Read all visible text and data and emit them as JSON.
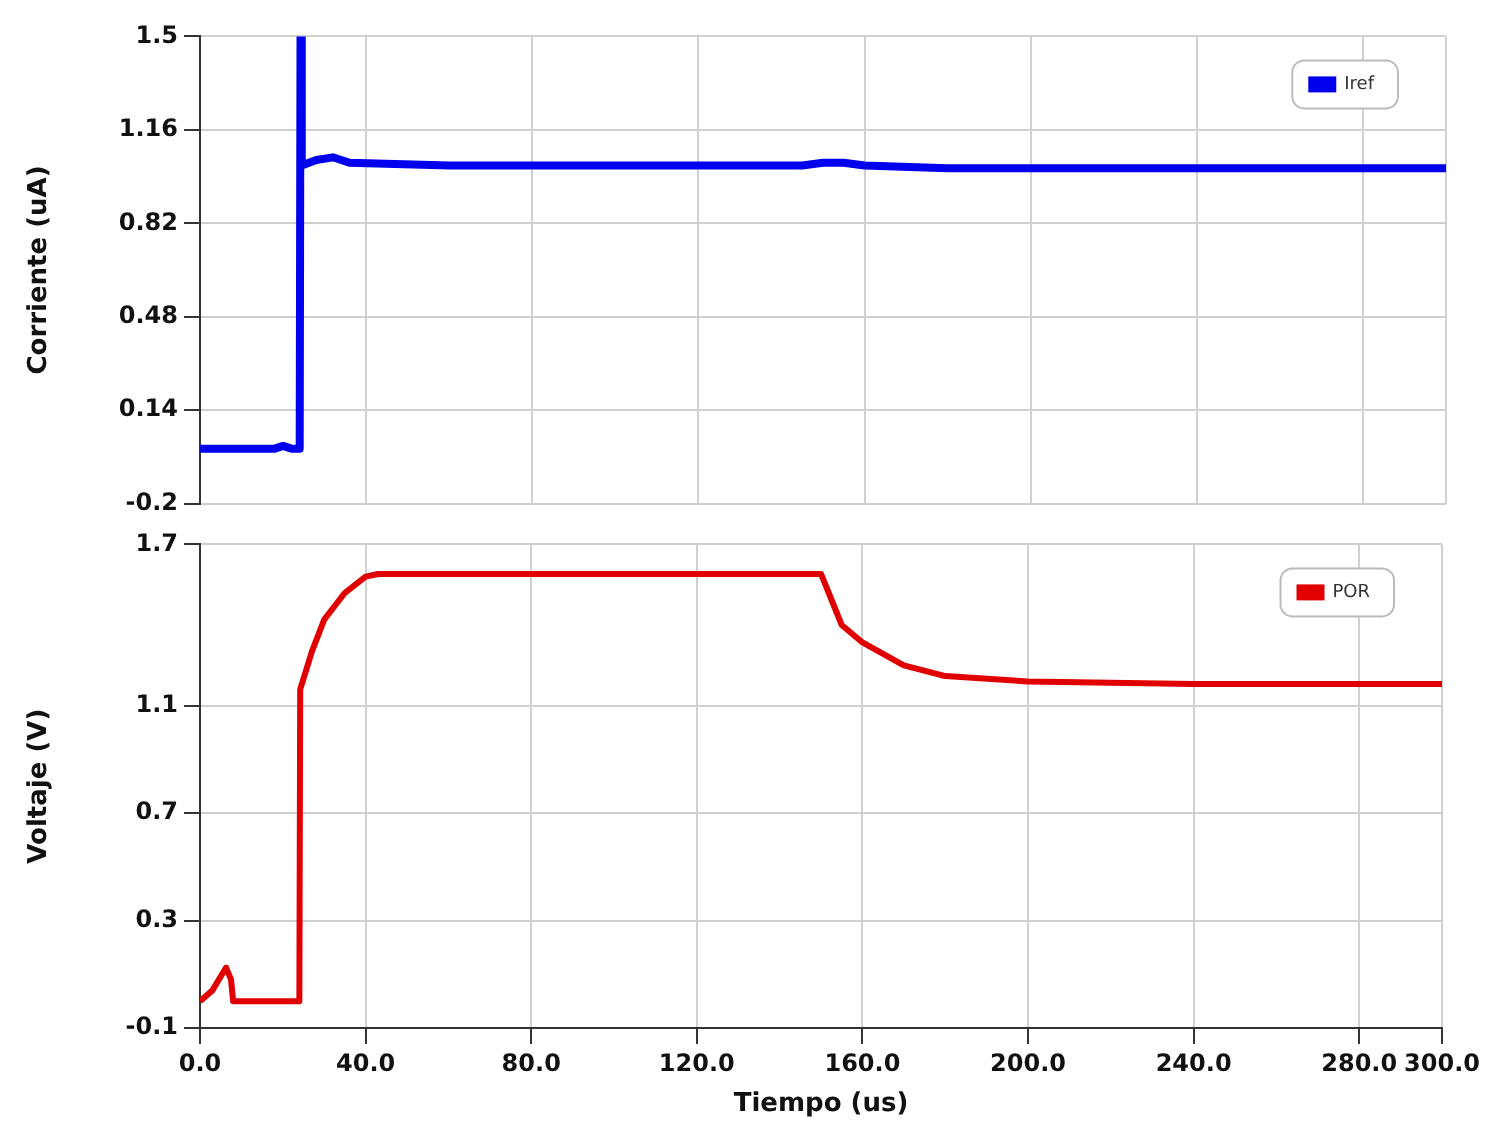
{
  "chart_data": [
    {
      "type": "line",
      "ylabel": "Corriente (uA)",
      "xlim": [
        0,
        300
      ],
      "xticks": [
        {
          "value": 0,
          "label": null
        },
        {
          "value": 40,
          "label": null
        },
        {
          "value": 80,
          "label": null
        },
        {
          "value": 120,
          "label": null
        },
        {
          "value": 160,
          "label": null
        },
        {
          "value": 200,
          "label": null
        },
        {
          "value": 240,
          "label": null
        },
        {
          "value": 280,
          "label": null
        },
        {
          "value": 300,
          "label": null
        }
      ],
      "ylim": [
        -0.2,
        1.5
      ],
      "yticks": [
        -0.2,
        0.14,
        0.48,
        0.82,
        1.16,
        1.5
      ],
      "tick_labels": "y",
      "grid": true,
      "legend": "top right",
      "marker": "none",
      "line_style": "solid",
      "series": [
        {
          "name": "Iref",
          "color": "#0000ee",
          "x": [
            0,
            18,
            20,
            22,
            24,
            24.2,
            24.5,
            28,
            32,
            36,
            60,
            145,
            150,
            155,
            160,
            180,
            300
          ],
          "values": [
            0.0,
            0.0,
            0.01,
            0.0,
            0.0,
            1.5,
            1.03,
            1.05,
            1.06,
            1.04,
            1.03,
            1.03,
            1.04,
            1.04,
            1.03,
            1.02,
            1.02
          ]
        }
      ]
    },
    {
      "type": "line",
      "xlabel": "Tiempo (us)",
      "ylabel": "Voltaje (V)",
      "xlim": [
        0,
        300
      ],
      "xticks": [
        {
          "value": 0,
          "label": "0.0"
        },
        {
          "value": 40,
          "label": "40.0"
        },
        {
          "value": 80,
          "label": "80.0"
        },
        {
          "value": 120,
          "label": "120.0"
        },
        {
          "value": 160,
          "label": "160.0"
        },
        {
          "value": 200,
          "label": "200.0"
        },
        {
          "value": 240,
          "label": "240.0"
        },
        {
          "value": 280,
          "label": "280.0"
        },
        {
          "value": 300,
          "label": "300.0"
        }
      ],
      "ylim": [
        -0.1,
        1.7
      ],
      "yticks": [
        -0.1,
        0.3,
        0.7,
        1.1,
        1.7
      ],
      "grid": true,
      "legend": "top right",
      "marker": "none",
      "line_style": "solid",
      "series": [
        {
          "name": "POR",
          "color": "#e00000",
          "x": [
            0,
            3,
            6.3,
            7.5,
            8,
            24,
            24.2,
            27,
            30,
            35,
            40,
            43,
            60,
            150,
            155,
            160,
            170,
            180,
            200,
            240,
            300
          ],
          "values": [
            0.0,
            0.04,
            0.125,
            0.08,
            0.0,
            0.0,
            1.16,
            1.3,
            1.42,
            1.52,
            1.58,
            1.59,
            1.59,
            1.59,
            1.4,
            1.335,
            1.25,
            1.21,
            1.19,
            1.18,
            1.18
          ]
        }
      ]
    }
  ]
}
